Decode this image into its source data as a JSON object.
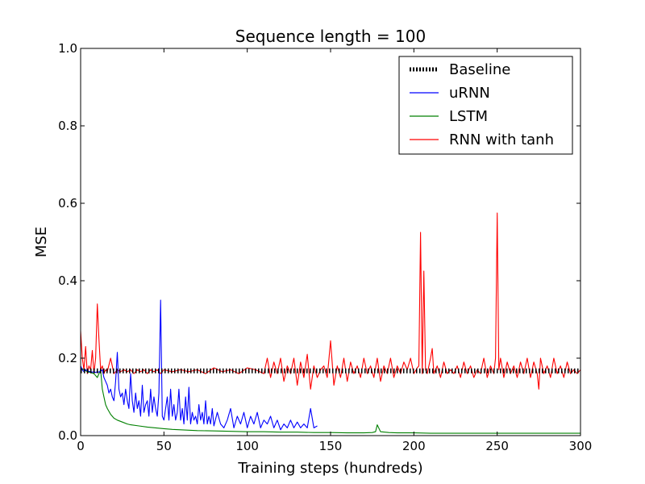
{
  "chart_data": {
    "type": "line",
    "title": "Sequence length = 100",
    "xlabel": "Training steps (hundreds)",
    "ylabel": "MSE",
    "xlim": [
      0,
      300
    ],
    "ylim": [
      0.0,
      1.0
    ],
    "xticks": [
      0,
      50,
      100,
      150,
      200,
      250,
      300
    ],
    "yticks": [
      0.0,
      0.2,
      0.4,
      0.6,
      0.8,
      1.0
    ],
    "xtick_labels": [
      "0",
      "50",
      "100",
      "150",
      "200",
      "250",
      "300"
    ],
    "ytick_labels": [
      "0.0",
      "0.2",
      "0.4",
      "0.6",
      "0.8",
      "1.0"
    ],
    "grid": false,
    "legend_position": "top-right",
    "series": [
      {
        "name": "Baseline",
        "color": "#000000",
        "style": "dotted",
        "x": [
          0,
          300
        ],
        "y": [
          0.167,
          0.167
        ]
      },
      {
        "name": "uRNN",
        "color": "#0000ff",
        "style": "solid",
        "x": [
          0,
          1,
          2,
          3,
          4,
          5,
          6,
          7,
          8,
          9,
          10,
          11,
          12,
          13,
          14,
          15,
          16,
          17,
          18,
          19,
          20,
          21,
          22,
          23,
          24,
          25,
          26,
          27,
          28,
          29,
          30,
          31,
          32,
          33,
          34,
          35,
          36,
          37,
          38,
          39,
          40,
          41,
          42,
          43,
          44,
          45,
          46,
          47,
          48,
          49,
          50,
          51,
          52,
          53,
          54,
          55,
          56,
          57,
          58,
          59,
          60,
          61,
          62,
          63,
          64,
          65,
          66,
          67,
          68,
          69,
          70,
          71,
          72,
          73,
          74,
          75,
          76,
          77,
          78,
          79,
          80,
          82,
          84,
          86,
          88,
          90,
          92,
          94,
          96,
          98,
          100,
          102,
          104,
          106,
          108,
          110,
          112,
          114,
          116,
          118,
          120,
          122,
          124,
          126,
          128,
          130,
          132,
          134,
          136,
          138,
          140,
          142
        ],
        "y": [
          0.18,
          0.17,
          0.165,
          0.17,
          0.168,
          0.166,
          0.165,
          0.164,
          0.165,
          0.163,
          0.165,
          0.164,
          0.166,
          0.17,
          0.15,
          0.14,
          0.13,
          0.11,
          0.12,
          0.1,
          0.09,
          0.14,
          0.215,
          0.12,
          0.1,
          0.11,
          0.08,
          0.12,
          0.09,
          0.07,
          0.16,
          0.09,
          0.06,
          0.11,
          0.07,
          0.09,
          0.05,
          0.13,
          0.06,
          0.08,
          0.09,
          0.05,
          0.12,
          0.06,
          0.1,
          0.07,
          0.05,
          0.11,
          0.35,
          0.05,
          0.04,
          0.07,
          0.1,
          0.04,
          0.12,
          0.05,
          0.08,
          0.04,
          0.06,
          0.12,
          0.04,
          0.07,
          0.03,
          0.1,
          0.04,
          0.125,
          0.03,
          0.06,
          0.04,
          0.05,
          0.03,
          0.08,
          0.04,
          0.06,
          0.03,
          0.09,
          0.03,
          0.05,
          0.03,
          0.07,
          0.025,
          0.06,
          0.03,
          0.02,
          0.04,
          0.07,
          0.02,
          0.05,
          0.03,
          0.06,
          0.02,
          0.05,
          0.03,
          0.06,
          0.02,
          0.04,
          0.03,
          0.05,
          0.02,
          0.04,
          0.015,
          0.03,
          0.02,
          0.04,
          0.02,
          0.035,
          0.02,
          0.03,
          0.02,
          0.07,
          0.02,
          0.025
        ],
        "_note": "values read from plot"
      },
      {
        "name": "LSTM",
        "color": "#008000",
        "style": "solid",
        "x": [
          0,
          2,
          4,
          6,
          8,
          10,
          12,
          13,
          14,
          15,
          16,
          18,
          20,
          22,
          25,
          28,
          30,
          35,
          40,
          45,
          50,
          55,
          60,
          65,
          70,
          80,
          90,
          100,
          110,
          120,
          130,
          140,
          150,
          160,
          170,
          175,
          177,
          178,
          180,
          185,
          190,
          200,
          210,
          220,
          230,
          240,
          250,
          260,
          270,
          280,
          290,
          300
        ],
        "y": [
          0.175,
          0.17,
          0.165,
          0.163,
          0.16,
          0.15,
          0.17,
          0.12,
          0.1,
          0.08,
          0.07,
          0.055,
          0.045,
          0.04,
          0.035,
          0.03,
          0.028,
          0.025,
          0.022,
          0.02,
          0.018,
          0.016,
          0.015,
          0.014,
          0.013,
          0.012,
          0.011,
          0.01,
          0.01,
          0.009,
          0.009,
          0.008,
          0.008,
          0.007,
          0.007,
          0.008,
          0.01,
          0.028,
          0.01,
          0.008,
          0.007,
          0.007,
          0.006,
          0.006,
          0.006,
          0.006,
          0.006,
          0.006,
          0.006,
          0.006,
          0.006,
          0.006
        ]
      },
      {
        "name": "RNN with tanh",
        "color": "#ff0000",
        "style": "solid",
        "x": [
          0,
          1,
          2,
          3,
          4,
          5,
          6,
          7,
          8,
          9,
          10,
          11,
          12,
          13,
          14,
          15,
          16,
          18,
          20,
          22,
          24,
          26,
          28,
          30,
          32,
          34,
          36,
          38,
          40,
          42,
          44,
          46,
          48,
          50,
          55,
          60,
          65,
          70,
          75,
          80,
          85,
          90,
          95,
          100,
          105,
          110,
          112,
          114,
          116,
          118,
          120,
          122,
          124,
          126,
          128,
          130,
          132,
          134,
          136,
          138,
          140,
          142,
          144,
          146,
          148,
          150,
          152,
          154,
          156,
          158,
          160,
          162,
          164,
          166,
          168,
          170,
          172,
          174,
          176,
          178,
          180,
          182,
          184,
          186,
          188,
          190,
          192,
          194,
          196,
          198,
          200,
          202,
          203,
          204,
          205,
          206,
          207,
          208,
          210,
          211,
          212,
          214,
          216,
          218,
          220,
          222,
          224,
          226,
          228,
          230,
          232,
          234,
          236,
          238,
          240,
          242,
          244,
          246,
          248,
          249,
          250,
          251,
          252,
          254,
          256,
          258,
          260,
          262,
          264,
          266,
          268,
          270,
          272,
          274,
          275,
          276,
          278,
          280,
          282,
          284,
          286,
          288,
          290,
          292,
          294,
          296,
          298,
          300
        ],
        "y": [
          0.27,
          0.2,
          0.17,
          0.23,
          0.16,
          0.18,
          0.17,
          0.22,
          0.16,
          0.2,
          0.34,
          0.25,
          0.17,
          0.18,
          0.16,
          0.17,
          0.165,
          0.2,
          0.16,
          0.17,
          0.165,
          0.17,
          0.165,
          0.17,
          0.16,
          0.17,
          0.165,
          0.17,
          0.16,
          0.17,
          0.165,
          0.17,
          0.16,
          0.17,
          0.165,
          0.17,
          0.165,
          0.17,
          0.16,
          0.175,
          0.165,
          0.17,
          0.16,
          0.175,
          0.17,
          0.16,
          0.2,
          0.15,
          0.19,
          0.16,
          0.2,
          0.14,
          0.18,
          0.16,
          0.2,
          0.13,
          0.19,
          0.15,
          0.21,
          0.12,
          0.18,
          0.15,
          0.17,
          0.18,
          0.15,
          0.245,
          0.13,
          0.18,
          0.15,
          0.2,
          0.14,
          0.19,
          0.16,
          0.18,
          0.15,
          0.2,
          0.16,
          0.18,
          0.15,
          0.2,
          0.14,
          0.18,
          0.16,
          0.2,
          0.15,
          0.18,
          0.16,
          0.19,
          0.17,
          0.2,
          0.16,
          0.175,
          0.18,
          0.525,
          0.16,
          0.425,
          0.17,
          0.16,
          0.2,
          0.225,
          0.16,
          0.18,
          0.15,
          0.19,
          0.16,
          0.17,
          0.16,
          0.18,
          0.15,
          0.19,
          0.16,
          0.18,
          0.15,
          0.17,
          0.16,
          0.2,
          0.15,
          0.18,
          0.16,
          0.2,
          0.575,
          0.17,
          0.2,
          0.15,
          0.19,
          0.16,
          0.18,
          0.15,
          0.19,
          0.16,
          0.2,
          0.15,
          0.19,
          0.16,
          0.12,
          0.2,
          0.16,
          0.18,
          0.15,
          0.2,
          0.16,
          0.18,
          0.15,
          0.19,
          0.16,
          0.17,
          0.16,
          0.17
        ]
      }
    ]
  }
}
